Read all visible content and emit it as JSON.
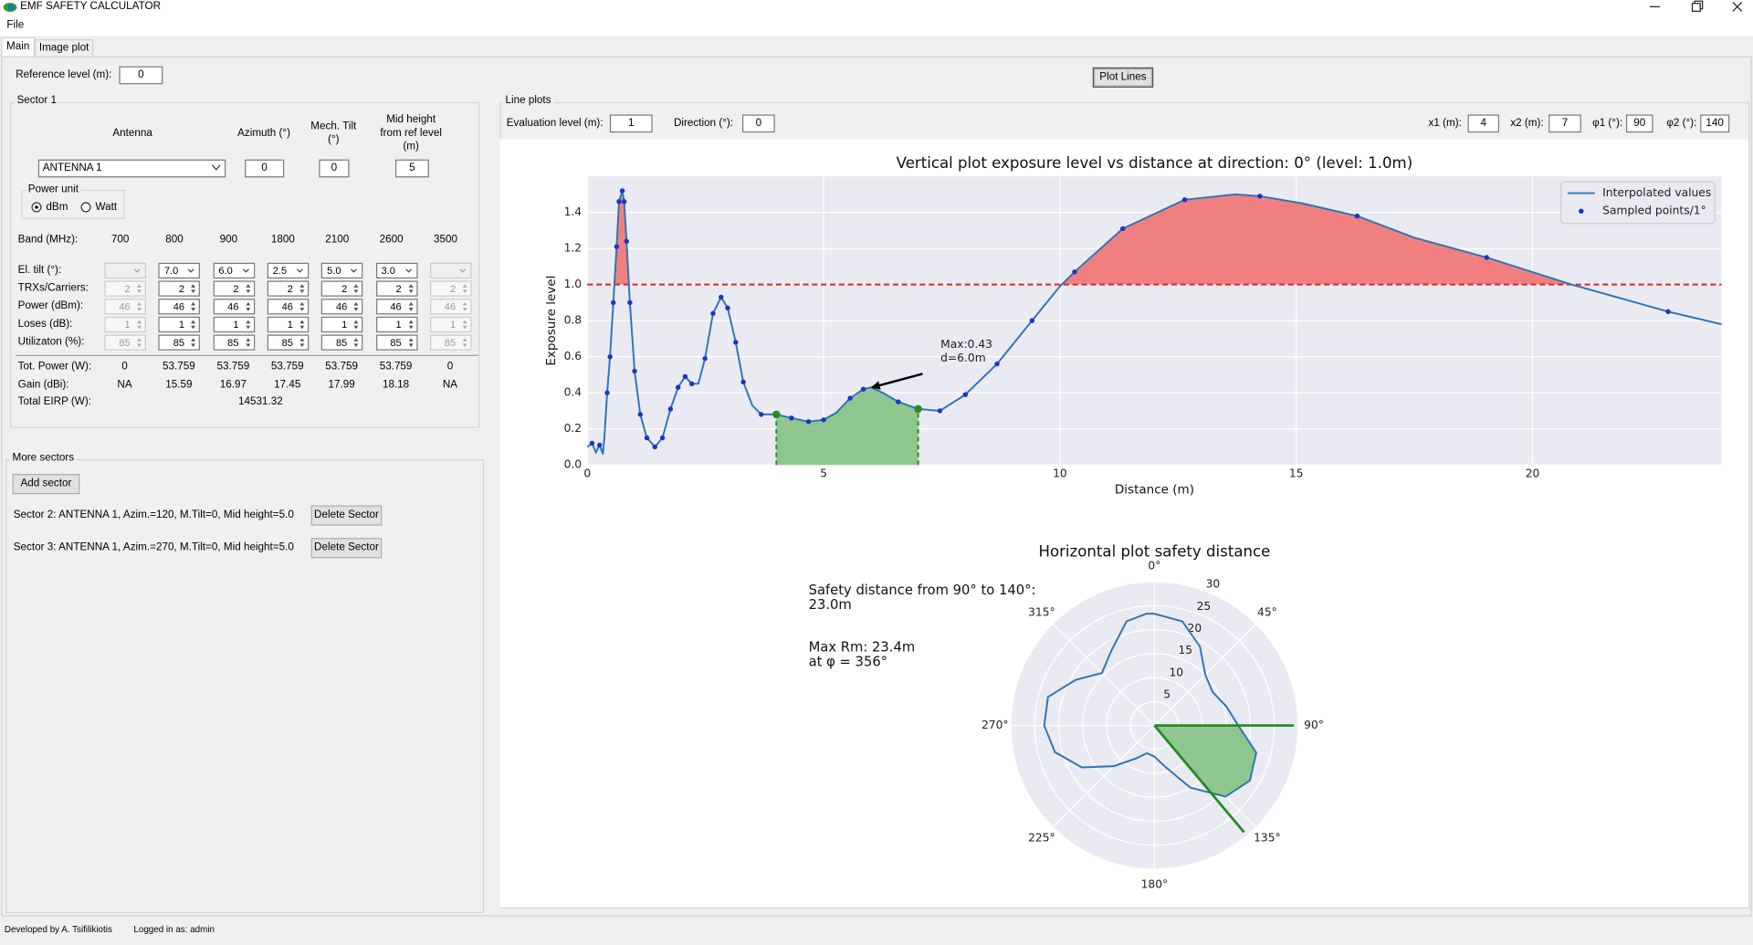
{
  "window": {
    "title": "EMF SAFETY CALCULATOR",
    "menu": [
      "File"
    ],
    "tabs": [
      "Main",
      "Image plot"
    ],
    "active_tab": 0
  },
  "reference_level": {
    "label": "Reference level (m):",
    "value": "0"
  },
  "sector1": {
    "title": "Sector 1",
    "headers": [
      [
        "Antenna"
      ],
      [
        "Azimuth (°)"
      ],
      [
        "Mech. Tilt",
        "(°)"
      ],
      [
        "Mid height",
        "from ref level",
        "(m)"
      ]
    ],
    "fields": {
      "antenna": "ANTENNA 1",
      "azimuth": "0",
      "mech_tilt": "0",
      "mid_height": "5"
    },
    "power_unit": {
      "label": "Power unit",
      "options": [
        "dBm",
        "Watt"
      ],
      "selected": 0
    },
    "band_table": {
      "label": "Band (MHz):",
      "bands": [
        "700",
        "800",
        "900",
        "1800",
        "2100",
        "2600",
        "3500"
      ],
      "enabled": [
        false,
        true,
        true,
        true,
        true,
        true,
        false
      ],
      "rows": [
        {
          "label": "El. tilt (°):",
          "kind": "combo",
          "values": [
            null,
            "7.0",
            "6.0",
            "2.5",
            "5.0",
            "3.0",
            null
          ]
        },
        {
          "label": "TRXs/Carriers:",
          "kind": "spin",
          "values": [
            "2",
            "2",
            "2",
            "2",
            "2",
            "2",
            "2"
          ]
        },
        {
          "label": "Power (dBm):",
          "kind": "spin",
          "values": [
            "46",
            "46",
            "46",
            "46",
            "46",
            "46",
            "46"
          ]
        },
        {
          "label": "Loses (dB):",
          "kind": "spin",
          "values": [
            "1",
            "1",
            "1",
            "1",
            "1",
            "1",
            "1"
          ]
        },
        {
          "label": "Utilizaton (%):",
          "kind": "spin",
          "values": [
            "85",
            "85",
            "85",
            "85",
            "85",
            "85",
            "85"
          ]
        }
      ],
      "totals": [
        {
          "label": "Tot. Power (W):",
          "values": [
            "0",
            "53.759",
            "53.759",
            "53.759",
            "53.759",
            "53.759",
            "0"
          ]
        },
        {
          "label": "Gain (dBi):",
          "values": [
            "NA",
            "15.59",
            "16.97",
            "17.45",
            "17.99",
            "18.18",
            "NA"
          ]
        }
      ],
      "eirp": {
        "label": "Total EIRP (W):",
        "value": "14531.32"
      }
    }
  },
  "more_sectors": {
    "title": "More sectors",
    "add_button": "Add sector",
    "sectors": [
      {
        "text": "Sector 2: ANTENNA 1, Azim.=120, M.Tilt=0, Mid height=5.0",
        "button": "Delete Sector"
      },
      {
        "text": "Sector 3: ANTENNA 1, Azim.=270, M.Tilt=0, Mid height=5.0",
        "button": "Delete Sector"
      }
    ]
  },
  "footer": [
    "Developed by A. Tsifilikiotis",
    "Logged in as: admin"
  ],
  "plot_button": "Plot Lines",
  "line_plots": {
    "title": "Line plots",
    "fields": [
      {
        "label": "Evaluation level (m):",
        "value": "1"
      },
      {
        "label": "Direction (°):",
        "value": "0"
      },
      {
        "label": "x1 (m):",
        "value": "4"
      },
      {
        "label": "x2 (m):",
        "value": "7"
      },
      {
        "label": "φ1 (°):",
        "value": "90"
      },
      {
        "label": "φ2 (°):",
        "value": "140"
      }
    ]
  },
  "chart_data": [
    {
      "type": "line",
      "title": "Vertical plot exposure level vs distance at direction: 0° (level: 1.0m)",
      "x_label": "Distance (m)",
      "y_label": "Exposure level",
      "xlim": [
        0,
        24
      ],
      "ylim": [
        0,
        1.6
      ],
      "xticks": [
        0,
        5,
        10,
        15,
        20
      ],
      "yticks": [
        {
          "value": 0,
          "label": "0.0"
        },
        0.2,
        0.4,
        0.6,
        0.8,
        {
          "value": 1,
          "label": "1.0"
        },
        1.2,
        1.4
      ],
      "grid": true,
      "legend": "upper right",
      "threshold": {
        "value": 1,
        "color": "#d62728"
      },
      "exceed_color": "#f08080",
      "series": [
        {
          "name": "Interpolated values",
          "kind": "line",
          "color": "#2f75b5",
          "x": [
            0,
            0.1,
            0.18,
            0.26,
            0.33,
            0.36,
            0.42,
            0.48,
            0.55,
            0.62,
            0.67,
            0.74,
            0.78,
            0.83,
            0.9,
            1.0,
            1.12,
            1.26,
            1.43,
            1.59,
            1.76,
            1.92,
            2.07,
            2.21,
            2.35,
            2.49,
            2.66,
            2.83,
            2.97,
            3.14,
            3.3,
            3.49,
            3.68,
            4.0,
            4.32,
            4.68,
            5.0,
            5.27,
            5.56,
            5.84,
            6.0,
            6.25,
            6.58,
            7.0,
            7.46,
            8.0,
            8.67,
            9.41,
            10.0,
            10.31,
            11.33,
            12.64,
            13.71,
            14.23,
            15.13,
            16.29,
            17.5,
            19.03,
            20.83,
            22.87,
            24.0
          ],
          "values": [
            0.1,
            0.12,
            0.07,
            0.11,
            0.06,
            0.15,
            0.4,
            0.6,
            0.9,
            1.21,
            1.46,
            1.52,
            1.46,
            1.24,
            0.9,
            0.52,
            0.28,
            0.15,
            0.1,
            0.15,
            0.31,
            0.43,
            0.49,
            0.45,
            0.45,
            0.59,
            0.84,
            0.93,
            0.87,
            0.68,
            0.46,
            0.33,
            0.28,
            0.28,
            0.26,
            0.24,
            0.25,
            0.29,
            0.37,
            0.42,
            0.43,
            0.4,
            0.35,
            0.31,
            0.3,
            0.39,
            0.56,
            0.8,
            0.99,
            1.07,
            1.31,
            1.47,
            1.5,
            1.49,
            1.45,
            1.38,
            1.26,
            1.15,
            1.0,
            0.85,
            0.78
          ]
        },
        {
          "name": "Sampled points/1°",
          "kind": "scatter",
          "color": "#1a34c9",
          "x": [
            0.1,
            0.26,
            0.42,
            0.48,
            0.55,
            0.62,
            0.67,
            0.74,
            0.78,
            0.83,
            0.9,
            1.0,
            1.12,
            1.26,
            1.43,
            1.59,
            1.76,
            1.92,
            2.07,
            2.21,
            2.49,
            2.66,
            2.83,
            2.97,
            3.14,
            3.3,
            3.68,
            4.32,
            4.68,
            5.0,
            5.56,
            5.84,
            6.58,
            7.46,
            8.0,
            8.67,
            9.41,
            10.31,
            11.33,
            12.64,
            14.23,
            16.29,
            19.03,
            22.87
          ],
          "values": [
            0.12,
            0.11,
            0.4,
            0.6,
            0.9,
            1.21,
            1.46,
            1.52,
            1.46,
            1.24,
            0.9,
            0.52,
            0.28,
            0.15,
            0.1,
            0.15,
            0.31,
            0.43,
            0.49,
            0.45,
            0.59,
            0.84,
            0.93,
            0.87,
            0.68,
            0.46,
            0.28,
            0.26,
            0.24,
            0.25,
            0.37,
            0.42,
            0.35,
            0.3,
            0.39,
            0.56,
            0.8,
            1.07,
            1.31,
            1.47,
            1.49,
            1.38,
            1.15,
            0.85
          ]
        }
      ],
      "range_highlight": {
        "x": [
          4,
          7
        ],
        "values": [
          0.28,
          0.31
        ],
        "color": "#2a8a2a",
        "fill": "#7fbf7f"
      },
      "annotation": {
        "lines": [
          "Max:0.43",
          "d=6.0m"
        ],
        "x": 6.0,
        "y": 0.43
      }
    },
    {
      "type": "polar",
      "title": "Horizontal plot safety distance",
      "rlim": [
        0,
        30
      ],
      "rticks": [
        5,
        10,
        15,
        20,
        25,
        30
      ],
      "theta_ticks": [
        {
          "value": 0,
          "label": "0°"
        },
        {
          "value": 45,
          "label": "45°"
        },
        {
          "value": 90,
          "label": "90°"
        },
        {
          "value": 135,
          "label": "135°"
        },
        {
          "value": 180,
          "label": "180°"
        },
        {
          "value": 225,
          "label": "225°"
        },
        {
          "value": 270,
          "label": "270°"
        },
        {
          "value": 315,
          "label": "315°"
        }
      ],
      "series": [
        {
          "color": "#2f75b5",
          "theta": [
            0,
            15,
            30,
            45,
            60,
            75,
            90,
            105,
            120,
            135,
            150,
            165,
            180,
            195,
            210,
            225,
            240,
            255,
            270,
            285,
            300,
            315,
            330,
            345,
            356
          ],
          "values": [
            23.3,
            22.5,
            19,
            15,
            14,
            15.5,
            17.5,
            22,
            23,
            21,
            15,
            9,
            6.5,
            6,
            8,
            12,
            17.5,
            21.5,
            23,
            23,
            19,
            15.5,
            18,
            22.5,
            23.4
          ]
        }
      ],
      "sector": {
        "theta": [
          90,
          140
        ],
        "color": "#1f8a1f",
        "fill": "#7fbf7f"
      },
      "annotations": [
        [
          "Safety distance from 90° to 140°:",
          "23.0m"
        ],
        [
          "Max Rm: 23.4m",
          "at φ = 356°"
        ]
      ]
    }
  ]
}
